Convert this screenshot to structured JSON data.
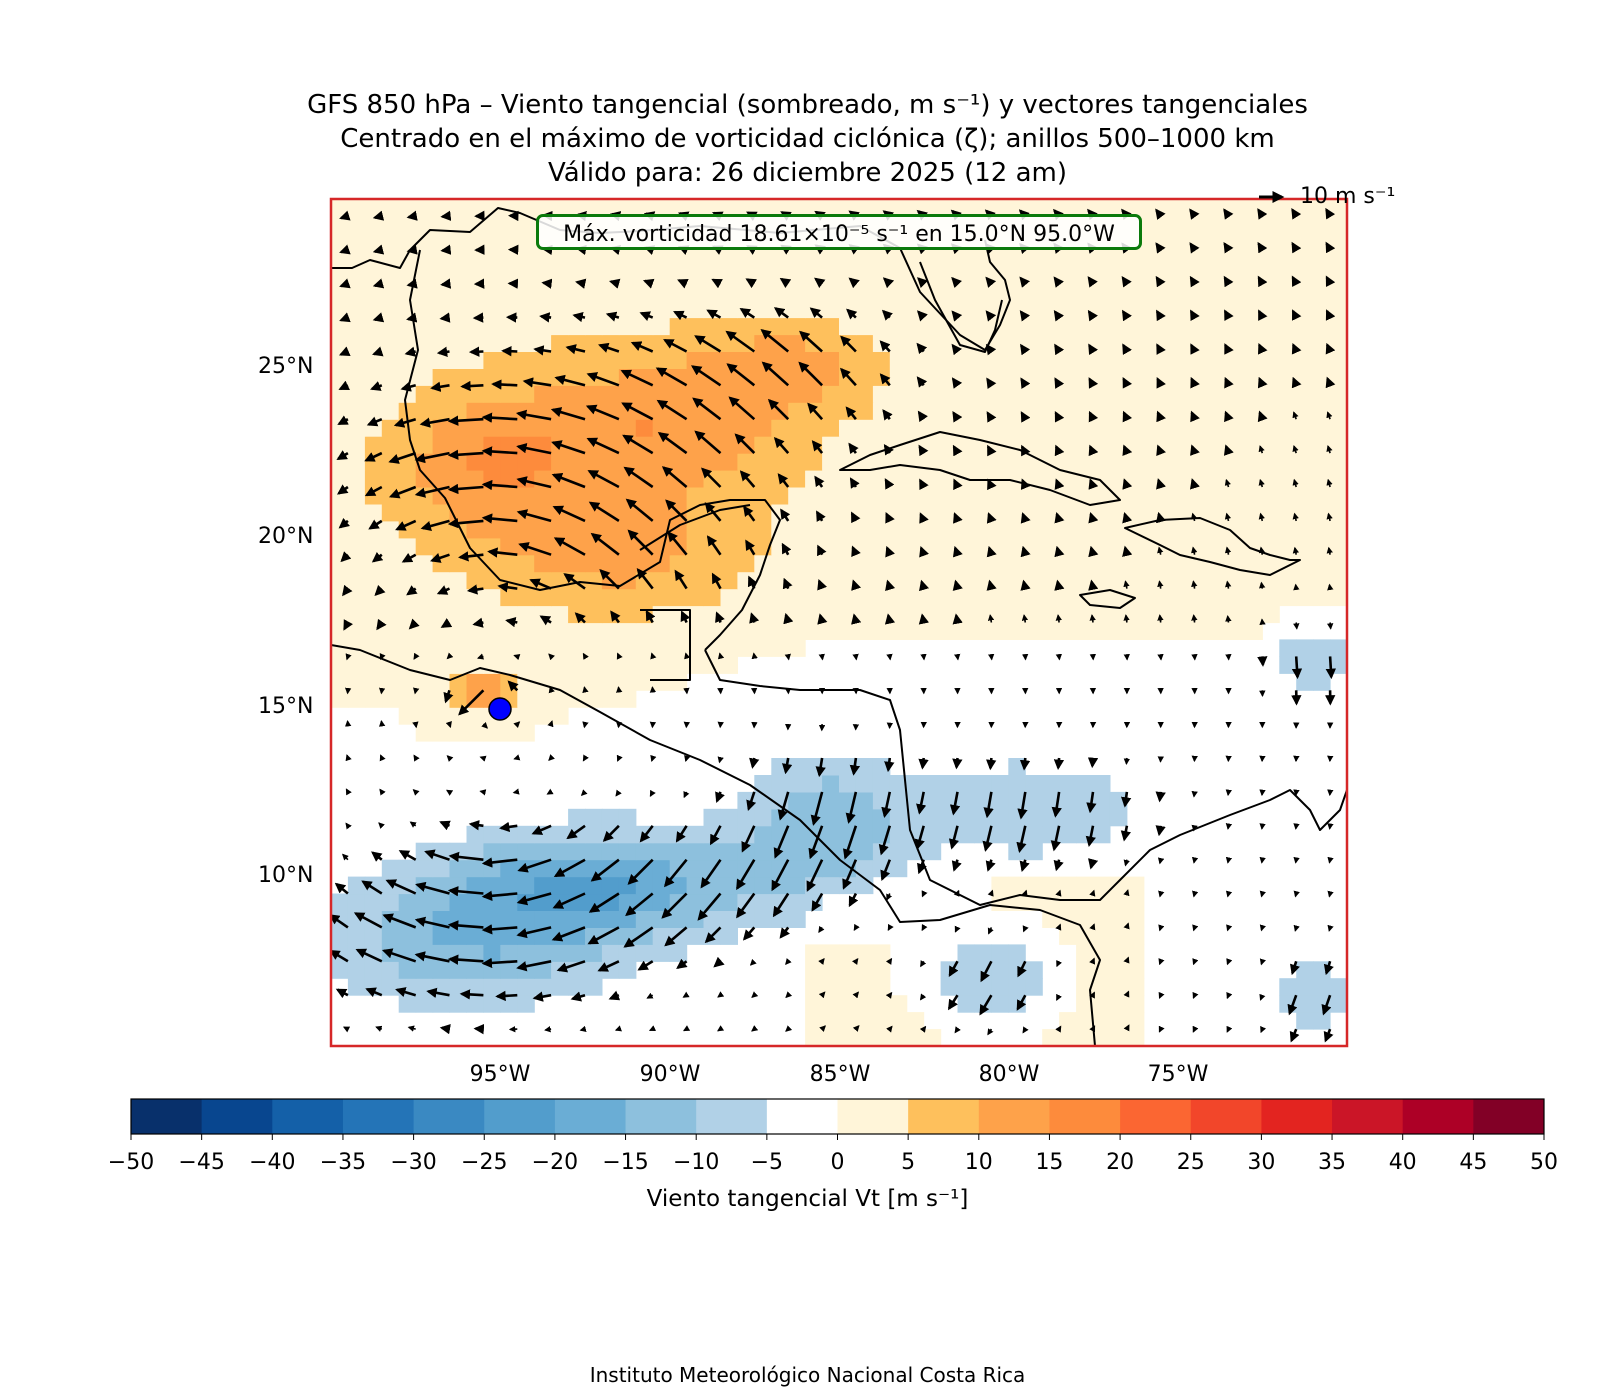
{
  "title": {
    "line1": "GFS 850 hPa – Viento tangencial (sombreado, m s⁻¹) y vectores tangenciales",
    "line2": "Centrado en el máximo de vorticidad ciclónica (ζ); anillos 500–1000 km",
    "line3": "Válido para: 26 diciembre 2025 (12 am)"
  },
  "info_box": "Máx. vorticidad 18.61×10⁻⁵ s⁻¹ en 15.0°N 95.0°W",
  "reference_vector": "10 m s⁻¹",
  "lat_ticks": [
    "25°N",
    "20°N",
    "15°N",
    "10°N"
  ],
  "lon_ticks": [
    "95°W",
    "90°W",
    "85°W",
    "80°W",
    "75°W"
  ],
  "colorbar": {
    "label": "Viento tangencial Vt [m s⁻¹]",
    "ticks": [
      "−50",
      "−45",
      "−40",
      "−35",
      "−30",
      "−25",
      "−20",
      "−15",
      "−10",
      "−5",
      "0",
      "5",
      "10",
      "15",
      "20",
      "25",
      "30",
      "35",
      "40",
      "45",
      "50"
    ],
    "colors": [
      "#08306b",
      "#08468f",
      "#1460a8",
      "#2474b7",
      "#3a89c2",
      "#529dcc",
      "#6aadd5",
      "#8dc0dd",
      "#b1d1e7",
      "#ffffff",
      "#fff5d9",
      "#fec05c",
      "#fea24a",
      "#fd8b3c",
      "#fb6632",
      "#f2462a",
      "#e32420",
      "#cb1527",
      "#ad0026",
      "#820026"
    ]
  },
  "center_marker": {
    "lat": 15.0,
    "lon": -95.0,
    "color": "#0000ff"
  },
  "map_extent": {
    "lon_min": -100,
    "lon_max": -70,
    "lat_min": 5,
    "lat_max": 30
  },
  "footer": "Instituto Meteorológico Nacional Costa Rica"
}
